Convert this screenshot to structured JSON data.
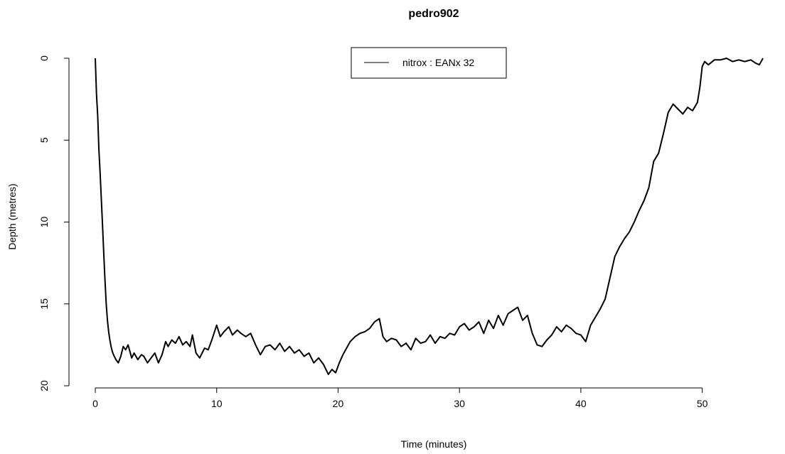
{
  "chart_data": {
    "type": "line",
    "title": "pedro902",
    "xlabel": "Time (minutes)",
    "ylabel": "Depth (metres)",
    "xlim": [
      0,
      55
    ],
    "ylim": [
      20,
      0
    ],
    "y_reversed": true,
    "x_ticks": [
      0,
      10,
      20,
      30,
      40,
      50
    ],
    "y_ticks": [
      0,
      5,
      10,
      15,
      20
    ],
    "grid": false,
    "legend_position": "top-center",
    "series": [
      {
        "name": "nitrox : EANx 32",
        "color": "#000000",
        "x": [
          0,
          0.1,
          0.2,
          0.3,
          0.4,
          0.5,
          0.6,
          0.7,
          0.8,
          0.9,
          1.0,
          1.1,
          1.2,
          1.3,
          1.4,
          1.5,
          1.7,
          1.9,
          2.1,
          2.3,
          2.5,
          2.7,
          3.0,
          3.2,
          3.5,
          3.8,
          4.0,
          4.3,
          4.6,
          4.9,
          5.2,
          5.5,
          5.8,
          6.0,
          6.3,
          6.6,
          6.9,
          7.2,
          7.5,
          7.8,
          8.0,
          8.3,
          8.6,
          9.0,
          9.3,
          9.6,
          10.0,
          10.3,
          10.6,
          11.0,
          11.3,
          11.7,
          12.0,
          12.4,
          12.8,
          13.2,
          13.6,
          14.0,
          14.4,
          14.8,
          15.2,
          15.6,
          16.0,
          16.4,
          16.8,
          17.2,
          17.6,
          18.0,
          18.4,
          18.8,
          19.2,
          19.5,
          19.8,
          20.1,
          20.4,
          20.7,
          21.0,
          21.4,
          21.8,
          22.2,
          22.6,
          23.0,
          23.4,
          23.7,
          24.0,
          24.4,
          24.8,
          25.2,
          25.6,
          26.0,
          26.4,
          26.8,
          27.2,
          27.6,
          28.0,
          28.4,
          28.8,
          29.2,
          29.6,
          30.0,
          30.4,
          30.8,
          31.2,
          31.6,
          32.0,
          32.4,
          32.8,
          33.2,
          33.6,
          34.0,
          34.4,
          34.8,
          35.2,
          35.6,
          36.0,
          36.4,
          36.8,
          37.2,
          37.6,
          38.0,
          38.4,
          38.8,
          39.2,
          39.6,
          40.0,
          40.4,
          40.8,
          41.2,
          41.6,
          42.0,
          42.4,
          42.8,
          43.2,
          43.6,
          44.0,
          44.4,
          44.8,
          45.2,
          45.6,
          46.0,
          46.4,
          46.8,
          47.2,
          47.6,
          48.0,
          48.4,
          48.8,
          49.2,
          49.6,
          49.8,
          50.0,
          50.2,
          50.5,
          51.0,
          51.5,
          52.0,
          52.5,
          53.0,
          53.5,
          54.0,
          54.4,
          54.7,
          55.0
        ],
        "y": [
          0,
          2.2,
          3.5,
          5.6,
          7.0,
          8.6,
          10.2,
          12.0,
          13.6,
          15.0,
          16.0,
          16.7,
          17.2,
          17.6,
          17.9,
          18.1,
          18.4,
          18.6,
          18.2,
          17.6,
          17.8,
          17.5,
          18.3,
          18.0,
          18.4,
          18.1,
          18.2,
          18.6,
          18.3,
          18.0,
          18.6,
          18.1,
          17.3,
          17.6,
          17.2,
          17.4,
          17.0,
          17.5,
          17.3,
          17.6,
          16.9,
          18.0,
          18.3,
          17.7,
          17.8,
          17.2,
          16.3,
          17.0,
          16.7,
          16.4,
          16.9,
          16.6,
          16.8,
          17.0,
          16.8,
          17.5,
          18.1,
          17.6,
          17.5,
          17.8,
          17.4,
          17.9,
          17.6,
          18.0,
          17.8,
          18.2,
          18.0,
          18.6,
          18.3,
          18.7,
          19.3,
          19.0,
          19.2,
          18.6,
          18.1,
          17.7,
          17.3,
          17.0,
          16.8,
          16.7,
          16.5,
          16.1,
          15.9,
          17.0,
          17.3,
          17.1,
          17.2,
          17.6,
          17.4,
          17.8,
          17.1,
          17.4,
          17.3,
          16.9,
          17.4,
          17.0,
          17.1,
          16.8,
          16.9,
          16.4,
          16.2,
          16.6,
          16.4,
          16.1,
          16.8,
          16.0,
          16.5,
          15.7,
          16.3,
          15.6,
          15.4,
          15.2,
          16.0,
          15.7,
          16.8,
          17.5,
          17.6,
          17.2,
          16.9,
          16.4,
          16.7,
          16.3,
          16.5,
          16.8,
          16.9,
          17.3,
          16.3,
          15.8,
          15.3,
          14.7,
          13.4,
          12.1,
          11.5,
          11.0,
          10.6,
          10.0,
          9.3,
          8.7,
          7.9,
          6.3,
          5.8,
          4.6,
          3.3,
          2.8,
          3.1,
          3.4,
          3.0,
          3.2,
          2.7,
          1.8,
          0.5,
          0.2,
          0.4,
          0.1,
          0.1,
          0.0,
          0.2,
          0.1,
          0.2,
          0.1,
          0.3,
          0.4,
          0.0
        ]
      }
    ]
  }
}
